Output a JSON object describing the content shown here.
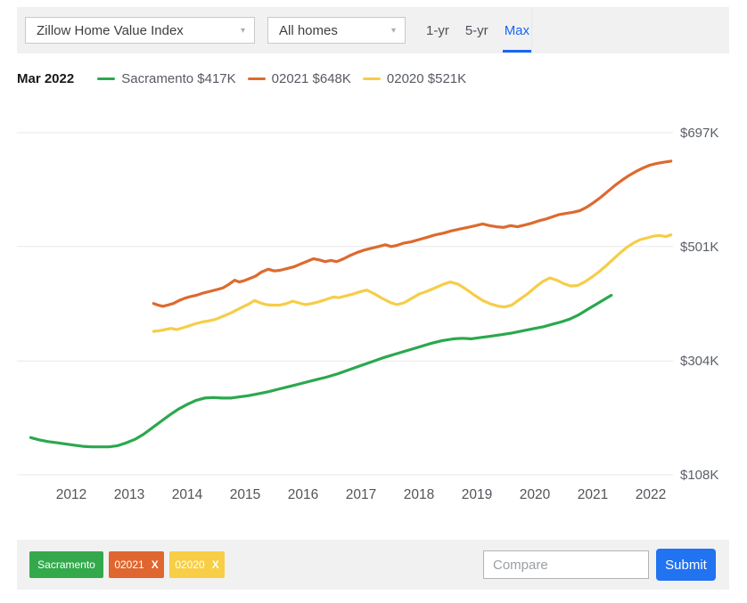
{
  "toolbar": {
    "metric_select": "Zillow Home Value Index",
    "homes_select": "All homes",
    "tabs": [
      {
        "label": "1-yr",
        "active": false
      },
      {
        "label": "5-yr",
        "active": false
      },
      {
        "label": "Max",
        "active": true
      }
    ],
    "active_tab_color": "#1a66f2"
  },
  "icons": {
    "chevron_down": "▾",
    "remove": "X"
  },
  "legend": {
    "date": "Mar 2022",
    "items": [
      {
        "label": "Sacramento $417K",
        "color": "#2ba84d"
      },
      {
        "label": "02021 $648K",
        "color": "#dd6a2e"
      },
      {
        "label": "02020 $521K",
        "color": "#f6cd48"
      }
    ]
  },
  "chart_data": {
    "type": "line",
    "title": "Zillow Home Value Index, all homes, max range",
    "xlabel": "",
    "ylabel": "",
    "grid": "horizontal",
    "legend_position": "top",
    "x_ticks": [
      2012,
      2013,
      2014,
      2015,
      2016,
      2017,
      2018,
      2019,
      2020,
      2021,
      2022
    ],
    "y_ticks": [
      {
        "value": 697,
        "label": "$697K"
      },
      {
        "value": 501,
        "label": "$501K"
      },
      {
        "value": 304,
        "label": "$304K"
      },
      {
        "value": 108,
        "label": "$108K"
      }
    ],
    "x_range": [
      2011.15,
      2022.45
    ],
    "y_range": [
      108,
      697
    ],
    "unit": "thousand USD",
    "series": [
      {
        "name": "Sacramento",
        "color": "#2ba84d",
        "end_value_label": "$417K",
        "points": [
          [
            2011.3,
            172
          ],
          [
            2011.45,
            168
          ],
          [
            2011.6,
            165
          ],
          [
            2011.75,
            163
          ],
          [
            2011.9,
            161
          ],
          [
            2012.05,
            159
          ],
          [
            2012.2,
            157
          ],
          [
            2012.35,
            156
          ],
          [
            2012.5,
            156
          ],
          [
            2012.65,
            156
          ],
          [
            2012.8,
            158
          ],
          [
            2012.95,
            163
          ],
          [
            2013.1,
            169
          ],
          [
            2013.25,
            178
          ],
          [
            2013.4,
            189
          ],
          [
            2013.55,
            200
          ],
          [
            2013.7,
            211
          ],
          [
            2013.85,
            221
          ],
          [
            2014.0,
            229
          ],
          [
            2014.15,
            236
          ],
          [
            2014.3,
            240
          ],
          [
            2014.45,
            241
          ],
          [
            2014.6,
            240
          ],
          [
            2014.75,
            240
          ],
          [
            2014.9,
            242
          ],
          [
            2015.05,
            244
          ],
          [
            2015.2,
            247
          ],
          [
            2015.4,
            251
          ],
          [
            2015.6,
            256
          ],
          [
            2015.8,
            261
          ],
          [
            2016.0,
            266
          ],
          [
            2016.2,
            271
          ],
          [
            2016.4,
            276
          ],
          [
            2016.6,
            282
          ],
          [
            2016.8,
            289
          ],
          [
            2017.0,
            296
          ],
          [
            2017.2,
            303
          ],
          [
            2017.4,
            310
          ],
          [
            2017.6,
            316
          ],
          [
            2017.8,
            322
          ],
          [
            2018.0,
            328
          ],
          [
            2018.2,
            334
          ],
          [
            2018.4,
            339
          ],
          [
            2018.6,
            342
          ],
          [
            2018.75,
            343
          ],
          [
            2018.9,
            342
          ],
          [
            2019.05,
            344
          ],
          [
            2019.2,
            346
          ],
          [
            2019.4,
            349
          ],
          [
            2019.6,
            352
          ],
          [
            2019.8,
            356
          ],
          [
            2020.0,
            360
          ],
          [
            2020.15,
            363
          ],
          [
            2020.3,
            367
          ],
          [
            2020.45,
            371
          ],
          [
            2020.6,
            376
          ],
          [
            2020.75,
            383
          ],
          [
            2020.9,
            392
          ],
          [
            2021.05,
            401
          ],
          [
            2021.2,
            410
          ],
          [
            2021.32,
            417
          ]
        ]
      },
      {
        "name": "02021",
        "color": "#dd6a2e",
        "end_value_label": "$648K",
        "points": [
          [
            2013.42,
            403
          ],
          [
            2013.5,
            400
          ],
          [
            2013.58,
            398
          ],
          [
            2013.66,
            400
          ],
          [
            2013.76,
            403
          ],
          [
            2013.86,
            408
          ],
          [
            2013.96,
            412
          ],
          [
            2014.06,
            415
          ],
          [
            2014.16,
            417
          ],
          [
            2014.28,
            421
          ],
          [
            2014.4,
            424
          ],
          [
            2014.52,
            427
          ],
          [
            2014.62,
            430
          ],
          [
            2014.72,
            436
          ],
          [
            2014.82,
            443
          ],
          [
            2014.9,
            440
          ],
          [
            2014.98,
            442
          ],
          [
            2015.08,
            446
          ],
          [
            2015.18,
            450
          ],
          [
            2015.28,
            457
          ],
          [
            2015.4,
            462
          ],
          [
            2015.5,
            459
          ],
          [
            2015.6,
            460
          ],
          [
            2015.72,
            463
          ],
          [
            2015.84,
            466
          ],
          [
            2015.96,
            471
          ],
          [
            2016.08,
            476
          ],
          [
            2016.18,
            480
          ],
          [
            2016.28,
            478
          ],
          [
            2016.38,
            475
          ],
          [
            2016.48,
            477
          ],
          [
            2016.58,
            475
          ],
          [
            2016.7,
            480
          ],
          [
            2016.82,
            486
          ],
          [
            2016.94,
            491
          ],
          [
            2017.06,
            495
          ],
          [
            2017.18,
            498
          ],
          [
            2017.3,
            501
          ],
          [
            2017.42,
            504
          ],
          [
            2017.52,
            501
          ],
          [
            2017.62,
            503
          ],
          [
            2017.74,
            507
          ],
          [
            2017.86,
            509
          ],
          [
            2018.0,
            513
          ],
          [
            2018.14,
            517
          ],
          [
            2018.28,
            521
          ],
          [
            2018.42,
            524
          ],
          [
            2018.56,
            528
          ],
          [
            2018.7,
            531
          ],
          [
            2018.84,
            534
          ],
          [
            2018.98,
            537
          ],
          [
            2019.1,
            540
          ],
          [
            2019.22,
            537
          ],
          [
            2019.34,
            535
          ],
          [
            2019.46,
            534
          ],
          [
            2019.58,
            537
          ],
          [
            2019.7,
            535
          ],
          [
            2019.82,
            538
          ],
          [
            2019.94,
            541
          ],
          [
            2020.06,
            545
          ],
          [
            2020.18,
            548
          ],
          [
            2020.3,
            552
          ],
          [
            2020.42,
            556
          ],
          [
            2020.54,
            558
          ],
          [
            2020.66,
            560
          ],
          [
            2020.78,
            563
          ],
          [
            2020.9,
            569
          ],
          [
            2021.02,
            577
          ],
          [
            2021.14,
            586
          ],
          [
            2021.26,
            596
          ],
          [
            2021.38,
            606
          ],
          [
            2021.5,
            615
          ],
          [
            2021.62,
            623
          ],
          [
            2021.74,
            630
          ],
          [
            2021.86,
            636
          ],
          [
            2021.98,
            641
          ],
          [
            2022.1,
            644
          ],
          [
            2022.22,
            646
          ],
          [
            2022.35,
            648
          ]
        ]
      },
      {
        "name": "02020",
        "color": "#f6cd48",
        "end_value_label": "$521K",
        "points": [
          [
            2013.42,
            355
          ],
          [
            2013.52,
            356
          ],
          [
            2013.62,
            358
          ],
          [
            2013.72,
            360
          ],
          [
            2013.82,
            358
          ],
          [
            2013.92,
            361
          ],
          [
            2014.02,
            364
          ],
          [
            2014.14,
            368
          ],
          [
            2014.26,
            371
          ],
          [
            2014.38,
            373
          ],
          [
            2014.5,
            376
          ],
          [
            2014.62,
            381
          ],
          [
            2014.74,
            386
          ],
          [
            2014.86,
            392
          ],
          [
            2014.98,
            398
          ],
          [
            2015.08,
            403
          ],
          [
            2015.16,
            408
          ],
          [
            2015.26,
            404
          ],
          [
            2015.36,
            401
          ],
          [
            2015.48,
            400
          ],
          [
            2015.6,
            400
          ],
          [
            2015.72,
            403
          ],
          [
            2015.82,
            407
          ],
          [
            2015.92,
            404
          ],
          [
            2016.04,
            401
          ],
          [
            2016.16,
            403
          ],
          [
            2016.28,
            406
          ],
          [
            2016.4,
            410
          ],
          [
            2016.52,
            414
          ],
          [
            2016.62,
            413
          ],
          [
            2016.74,
            416
          ],
          [
            2016.86,
            419
          ],
          [
            2016.98,
            423
          ],
          [
            2017.1,
            426
          ],
          [
            2017.24,
            419
          ],
          [
            2017.38,
            411
          ],
          [
            2017.52,
            404
          ],
          [
            2017.62,
            401
          ],
          [
            2017.74,
            404
          ],
          [
            2017.88,
            412
          ],
          [
            2018.0,
            419
          ],
          [
            2018.14,
            424
          ],
          [
            2018.28,
            430
          ],
          [
            2018.42,
            436
          ],
          [
            2018.54,
            440
          ],
          [
            2018.68,
            436
          ],
          [
            2018.82,
            427
          ],
          [
            2018.96,
            417
          ],
          [
            2019.1,
            408
          ],
          [
            2019.24,
            402
          ],
          [
            2019.38,
            398
          ],
          [
            2019.48,
            397
          ],
          [
            2019.6,
            400
          ],
          [
            2019.74,
            410
          ],
          [
            2019.88,
            420
          ],
          [
            2020.02,
            432
          ],
          [
            2020.14,
            441
          ],
          [
            2020.26,
            447
          ],
          [
            2020.38,
            443
          ],
          [
            2020.5,
            437
          ],
          [
            2020.62,
            433
          ],
          [
            2020.74,
            434
          ],
          [
            2020.86,
            440
          ],
          [
            2020.98,
            448
          ],
          [
            2021.1,
            457
          ],
          [
            2021.22,
            467
          ],
          [
            2021.34,
            478
          ],
          [
            2021.46,
            489
          ],
          [
            2021.58,
            499
          ],
          [
            2021.7,
            507
          ],
          [
            2021.82,
            513
          ],
          [
            2021.94,
            516
          ],
          [
            2022.06,
            519
          ],
          [
            2022.16,
            520
          ],
          [
            2022.26,
            518
          ],
          [
            2022.35,
            521
          ]
        ]
      }
    ]
  },
  "compare_bar": {
    "chips": [
      {
        "label": "Sacramento",
        "color": "#33a94c",
        "has_remove": false
      },
      {
        "label": "02021",
        "color": "#e0662f",
        "has_remove": true
      },
      {
        "label": "02020",
        "color": "#f7ce46",
        "has_remove": true
      }
    ],
    "input_placeholder": "Compare",
    "submit_label": "Submit",
    "submit_color": "#2173f2"
  }
}
